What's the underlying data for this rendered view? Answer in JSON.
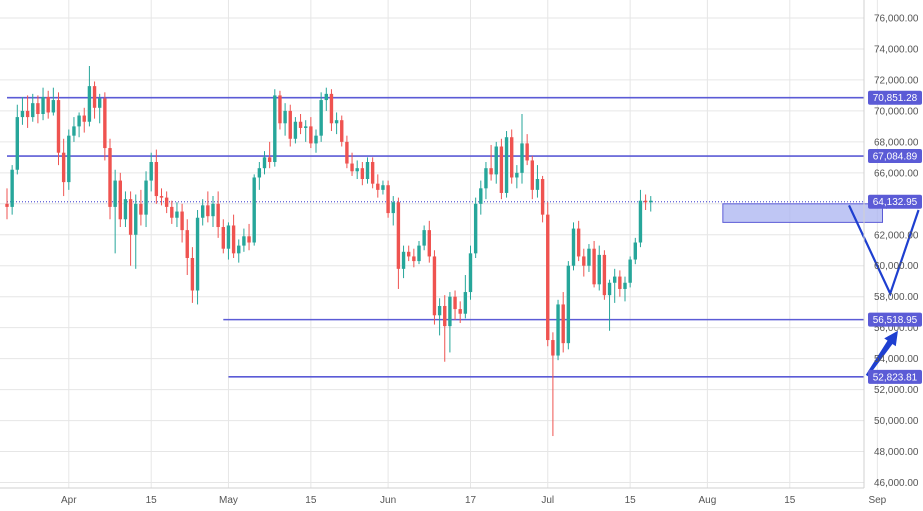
{
  "colors": {
    "up": "#26a69a",
    "down": "#ef5350",
    "level": "#5b5bd6",
    "zone_fill": "#a9b3f0",
    "zone_stroke": "#5b5bd6",
    "arrow": "#1e3fd0",
    "grid": "#e6e6e6"
  },
  "chart_data": {
    "type": "candlestick",
    "ylim": [
      45500,
      77000
    ],
    "y_ticks": [
      "76,000.00",
      "74,000.00",
      "72,000.00",
      "70,000.00",
      "68,000.00",
      "66,000.00",
      "64,000.00",
      "62,000.00",
      "60,000.00",
      "58,000.00",
      "56,000.00",
      "54,000.00",
      "52,000.00",
      "50,000.00",
      "48,000.00",
      "46,000.00"
    ],
    "y_tick_values": [
      76000,
      74000,
      72000,
      70000,
      68000,
      66000,
      64000,
      62000,
      60000,
      58000,
      56000,
      54000,
      52000,
      50000,
      48000,
      46000
    ],
    "x_ticks": [
      "Apr",
      "15",
      "May",
      "15",
      "Jun",
      "17",
      "Jul",
      "15",
      "Aug",
      "15",
      "Sep"
    ],
    "x_tick_days": [
      12,
      28,
      43,
      59,
      74,
      90,
      105,
      121,
      136,
      152,
      169
    ],
    "levels": [
      {
        "value": 70851.28,
        "label": "70,851.28",
        "start_day": 0
      },
      {
        "value": 67084.89,
        "label": "67,084.89",
        "start_day": 0
      },
      {
        "value": 64132.95,
        "label": "64,132.95",
        "start_day": 0,
        "dotted": true
      },
      {
        "value": 56518.95,
        "label": "56,518.95",
        "start_day": 42
      },
      {
        "value": 52823.81,
        "label": "52,823.81",
        "start_day": 43
      }
    ],
    "zone": {
      "start_day": 139,
      "end_day": 170,
      "top": 64000,
      "bottom": 62800
    },
    "projection": {
      "days": [
        163.5,
        171.5,
        177
      ],
      "values": [
        63900,
        58200,
        63600
      ]
    },
    "arrow": {
      "from": [
        167,
        52900
      ],
      "to": [
        173,
        55800
      ]
    },
    "candles": [
      [
        64000,
        65000,
        63000,
        63800
      ],
      [
        63800,
        66500,
        63300,
        66200
      ],
      [
        66200,
        70400,
        65900,
        69600
      ],
      [
        69600,
        70900,
        69100,
        70000
      ],
      [
        70000,
        71000,
        68900,
        69600
      ],
      [
        69600,
        71100,
        69300,
        70500
      ],
      [
        70500,
        71000,
        69200,
        69800
      ],
      [
        69800,
        71500,
        69400,
        70900
      ],
      [
        70900,
        71300,
        69500,
        69900
      ],
      [
        69900,
        71500,
        69700,
        70700
      ],
      [
        70700,
        71200,
        66500,
        67300
      ],
      [
        67300,
        68200,
        64500,
        65400
      ],
      [
        65400,
        68800,
        64900,
        68400
      ],
      [
        68400,
        69600,
        68000,
        69000
      ],
      [
        69000,
        69900,
        68300,
        69700
      ],
      [
        69700,
        70200,
        68600,
        69300
      ],
      [
        69300,
        72900,
        69000,
        71600
      ],
      [
        71600,
        71900,
        69500,
        70200
      ],
      [
        70200,
        71100,
        69200,
        70800
      ],
      [
        70800,
        71200,
        66800,
        67600
      ],
      [
        67600,
        68200,
        63000,
        63800
      ],
      [
        63800,
        66200,
        60800,
        65500
      ],
      [
        65500,
        66000,
        62500,
        63000
      ],
      [
        63000,
        64800,
        62500,
        64300
      ],
      [
        64300,
        64800,
        60000,
        62000
      ],
      [
        62000,
        64600,
        59800,
        64000
      ],
      [
        64000,
        64900,
        62600,
        63300
      ],
      [
        63300,
        66100,
        62500,
        65500
      ],
      [
        65500,
        67300,
        64800,
        66700
      ],
      [
        66700,
        67500,
        64000,
        64500
      ],
      [
        64500,
        65000,
        63900,
        64400
      ],
      [
        64400,
        64800,
        63400,
        63800
      ],
      [
        63800,
        64200,
        62700,
        63100
      ],
      [
        63100,
        64100,
        62500,
        63500
      ],
      [
        63500,
        64000,
        61500,
        62300
      ],
      [
        62300,
        63000,
        59400,
        60500
      ],
      [
        60500,
        61200,
        57600,
        58400
      ],
      [
        58400,
        63600,
        57500,
        63100
      ],
      [
        63100,
        64300,
        62600,
        63900
      ],
      [
        63900,
        64800,
        62800,
        63200
      ],
      [
        63200,
        64500,
        62500,
        64000
      ],
      [
        64000,
        64800,
        61800,
        62500
      ],
      [
        62500,
        63000,
        60800,
        61100
      ],
      [
        61100,
        62800,
        60400,
        62600
      ],
      [
        62600,
        63300,
        60500,
        60800
      ],
      [
        60800,
        61700,
        60200,
        61300
      ],
      [
        61300,
        62400,
        60900,
        61900
      ],
      [
        61900,
        62700,
        61000,
        61500
      ],
      [
        61500,
        65900,
        61300,
        65700
      ],
      [
        65700,
        66700,
        64900,
        66300
      ],
      [
        66300,
        67400,
        65900,
        67000
      ],
      [
        67000,
        68000,
        66300,
        66700
      ],
      [
        66700,
        71400,
        66400,
        71000
      ],
      [
        71000,
        71300,
        68800,
        69200
      ],
      [
        69200,
        70500,
        68400,
        70000
      ],
      [
        70000,
        70400,
        67700,
        68200
      ],
      [
        68200,
        69600,
        67900,
        69300
      ],
      [
        69300,
        69800,
        68500,
        68900
      ],
      [
        68900,
        69400,
        68000,
        69000
      ],
      [
        69000,
        69600,
        67600,
        67900
      ],
      [
        67900,
        68800,
        67300,
        68400
      ],
      [
        68400,
        71200,
        68000,
        70700
      ],
      [
        70700,
        71500,
        70000,
        71100
      ],
      [
        71100,
        71400,
        68700,
        69200
      ],
      [
        69200,
        69900,
        68500,
        69400
      ],
      [
        69400,
        69700,
        67700,
        68000
      ],
      [
        68000,
        68400,
        66300,
        66600
      ],
      [
        66600,
        67300,
        65800,
        66100
      ],
      [
        66100,
        66800,
        65600,
        66300
      ],
      [
        66300,
        66700,
        65200,
        65600
      ],
      [
        65600,
        67000,
        65300,
        66700
      ],
      [
        66700,
        67000,
        65000,
        65300
      ],
      [
        65300,
        65900,
        64400,
        64900
      ],
      [
        64900,
        65500,
        64600,
        65200
      ],
      [
        65200,
        65500,
        63100,
        63400
      ],
      [
        63400,
        64500,
        62600,
        64100
      ],
      [
        64100,
        64400,
        58500,
        59800
      ],
      [
        59800,
        61300,
        59200,
        60900
      ],
      [
        60900,
        61300,
        60300,
        60600
      ],
      [
        60600,
        61100,
        59900,
        60300
      ],
      [
        60300,
        61600,
        60100,
        61300
      ],
      [
        61300,
        62600,
        61000,
        62300
      ],
      [
        62300,
        62900,
        60200,
        60600
      ],
      [
        60600,
        61000,
        56200,
        56800
      ],
      [
        56800,
        57900,
        55500,
        57400
      ],
      [
        57400,
        58100,
        53800,
        56100
      ],
      [
        56100,
        58300,
        54400,
        58000
      ],
      [
        58000,
        58400,
        56500,
        57200
      ],
      [
        57200,
        57700,
        56300,
        56900
      ],
      [
        56900,
        59400,
        56600,
        58300
      ],
      [
        58300,
        61300,
        57800,
        60800
      ],
      [
        60800,
        64400,
        60500,
        64000
      ],
      [
        64000,
        65500,
        63300,
        65000
      ],
      [
        65000,
        66700,
        64300,
        66300
      ],
      [
        66300,
        67800,
        65500,
        65900
      ],
      [
        65900,
        68000,
        65300,
        67700
      ],
      [
        67700,
        68200,
        64300,
        64700
      ],
      [
        64700,
        68700,
        64400,
        68300
      ],
      [
        68300,
        68800,
        65300,
        65700
      ],
      [
        65700,
        66500,
        65000,
        66000
      ],
      [
        66000,
        69800,
        65300,
        67900
      ],
      [
        67900,
        68500,
        66500,
        66800
      ],
      [
        66800,
        67100,
        64300,
        64900
      ],
      [
        64900,
        66500,
        64400,
        65600
      ],
      [
        65600,
        65800,
        62800,
        63300
      ],
      [
        63300,
        64100,
        54800,
        55200
      ],
      [
        55200,
        55700,
        49000,
        54200
      ],
      [
        54200,
        57800,
        53900,
        57500
      ],
      [
        57500,
        58300,
        54400,
        55000
      ],
      [
        55000,
        60300,
        54600,
        60000
      ],
      [
        60000,
        62800,
        59700,
        62400
      ],
      [
        62400,
        62900,
        60300,
        60600
      ],
      [
        60600,
        61100,
        59300,
        60000
      ],
      [
        60000,
        61400,
        59600,
        61100
      ],
      [
        61100,
        61600,
        58600,
        58800
      ],
      [
        58800,
        61300,
        58400,
        60700
      ],
      [
        60700,
        61000,
        57800,
        58100
      ],
      [
        58100,
        59100,
        55800,
        58900
      ],
      [
        58900,
        59800,
        57600,
        59300
      ],
      [
        59300,
        59700,
        58000,
        58500
      ],
      [
        58500,
        59300,
        57700,
        58900
      ],
      [
        58900,
        60600,
        58600,
        60400
      ],
      [
        60400,
        61800,
        60100,
        61500
      ],
      [
        61500,
        64900,
        61200,
        64200
      ],
      [
        64200,
        64600,
        63600,
        64100
      ],
      [
        64100,
        64500,
        63500,
        64200
      ]
    ]
  }
}
